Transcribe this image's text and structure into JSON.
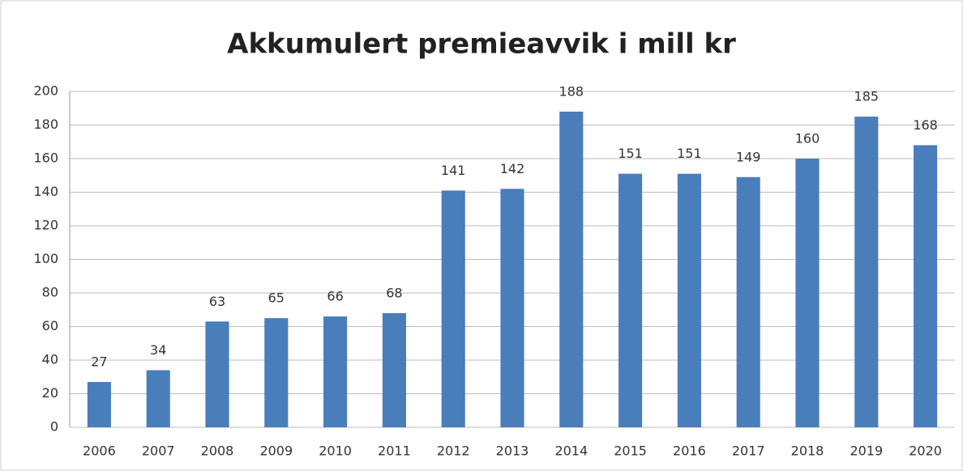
{
  "chart_data": {
    "type": "bar",
    "title": "Akkumulert premieavvik i mill kr",
    "categories": [
      "2006",
      "2007",
      "2008",
      "2009",
      "2010",
      "2011",
      "2012",
      "2013",
      "2014",
      "2015",
      "2016",
      "2017",
      "2018",
      "2019",
      "2020"
    ],
    "values": [
      27,
      34,
      63,
      65,
      66,
      68,
      141,
      142,
      188,
      151,
      151,
      149,
      160,
      185,
      168
    ],
    "color": "#4a7ebb",
    "ylim": [
      0,
      200
    ],
    "yticks": [
      0,
      20,
      40,
      60,
      80,
      100,
      120,
      140,
      160,
      180,
      200
    ],
    "grid": true,
    "data_labels": true
  }
}
